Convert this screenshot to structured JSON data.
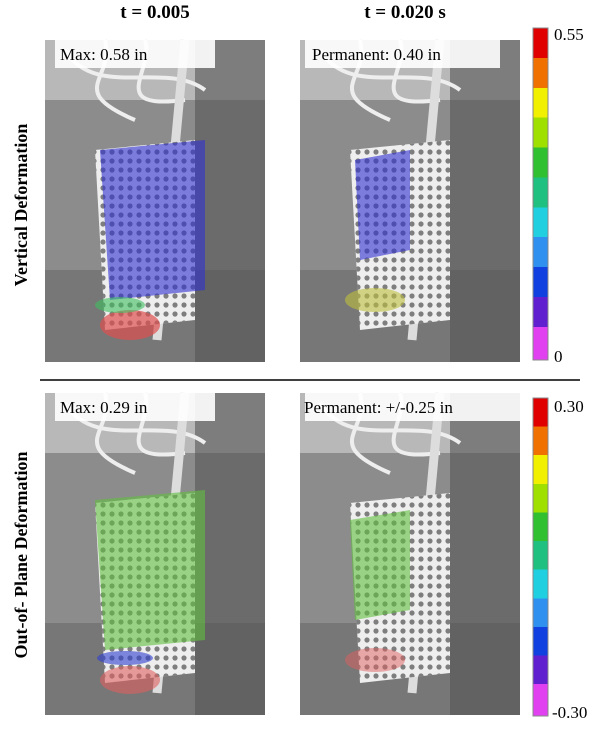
{
  "columns": {
    "left": "t = 0.005",
    "right": "t = 0.020 s"
  },
  "rows": [
    {
      "label": "Vertical Deformation",
      "left_note": "Max: 0.58 in",
      "right_note": "Permanent: 0.40 in",
      "scale_max": "0.55",
      "scale_min": "0"
    },
    {
      "label": "Out-of- Plane Deformation",
      "left_note": "Max: 0.29 in",
      "right_note": "Permanent: +/-0.25 in",
      "scale_max": "0.30",
      "scale_min": "-0.30"
    }
  ]
}
